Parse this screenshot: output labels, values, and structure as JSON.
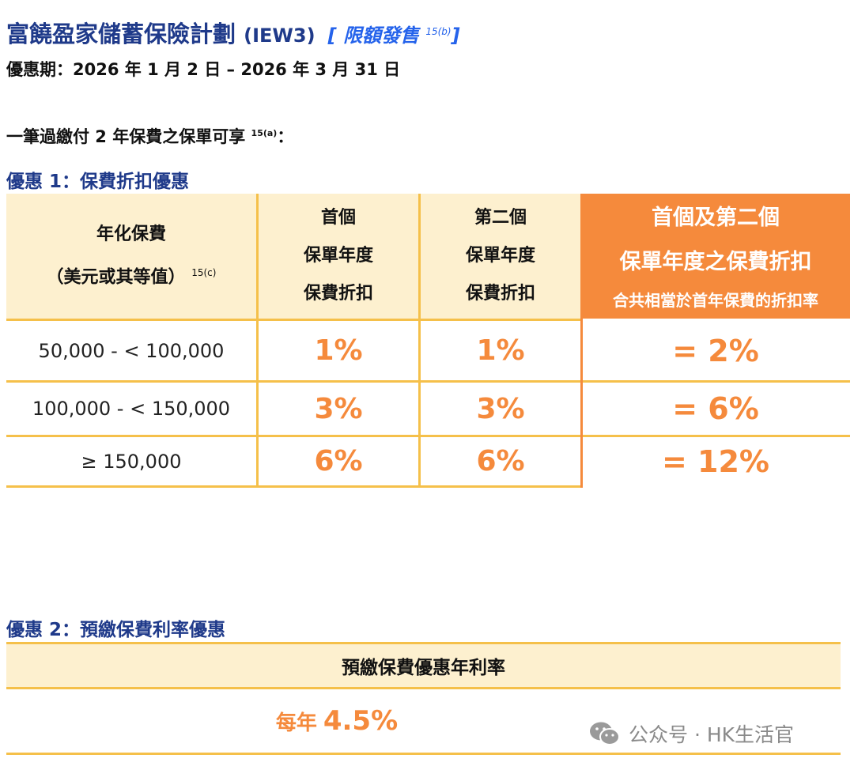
{
  "header": {
    "title": "富饒盈家儲蓄保險計劃",
    "plan_code": "(IEW3)",
    "tag_open": "[",
    "tag": "限額發售",
    "tag_note": "15(b)",
    "tag_close": "]",
    "period": "優惠期：2026 年 1 月 2 日 – 2026 年 3 月 31 日",
    "eligibility": "一筆過繳付 2 年保費之保單可享",
    "eligibility_note": "15(a)",
    "eligibility_colon": "："
  },
  "offer1": {
    "title": "優惠 1：保費折扣優惠",
    "columns": {
      "premium": {
        "line1": "年化保費",
        "line2": "（美元或其等值）",
        "note": "15(c)"
      },
      "first_year": {
        "line1": "首個",
        "line2": "保單年度",
        "line3": "保費折扣"
      },
      "second_year": {
        "line1": "第二個",
        "line2": "保單年度",
        "line3": "保費折扣"
      },
      "total": {
        "line1": "首個及第二個",
        "line2": "保單年度之保費折扣",
        "line3": "合共相當於首年保費的折扣率"
      }
    },
    "rows": [
      {
        "range": "50,000 - < 100,000",
        "first": "1%",
        "second": "1%",
        "total": "= 2%"
      },
      {
        "range": "100,000 - < 150,000",
        "first": "3%",
        "second": "3%",
        "total": "= 6%"
      },
      {
        "range": "≥ 150,000",
        "first": "6%",
        "second": "6%",
        "total": "= 12%"
      }
    ]
  },
  "offer2": {
    "title": "優惠 2：預繳保費利率優惠",
    "header": "預繳保費優惠年利率",
    "value_prefix": "每年",
    "value": "4.5%"
  },
  "watermark": {
    "text": "公众号 · HK生活官",
    "icon": "wechat-icon"
  },
  "colors": {
    "title_blue": "#1f3a8a",
    "tag_blue": "#2563eb",
    "accent_orange": "#f58a3c",
    "header_bg": "#fdf0cf",
    "border_yellow": "#f5c04a",
    "watermark_gray": "#8a8a8a"
  }
}
